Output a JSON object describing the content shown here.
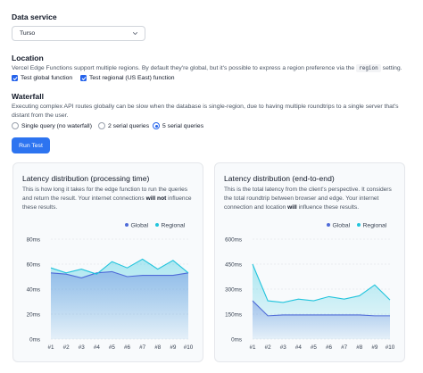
{
  "data_service": {
    "title": "Data service",
    "selected": "Turso"
  },
  "location": {
    "title": "Location",
    "desc_before": "Vercel Edge Functions support multiple regions. By default they're global, but it's possible to express a region preference via the",
    "code": "region",
    "desc_after": "setting.",
    "checkboxes": [
      {
        "label": "Test global function",
        "checked": true
      },
      {
        "label": "Test regional (US East) function",
        "checked": true
      }
    ]
  },
  "waterfall": {
    "title": "Waterfall",
    "desc": "Executing complex API routes globally can be slow when the database is single-region, due to having multiple roundtrips to a single server that's distant from the user.",
    "options": [
      {
        "label": "Single query (no waterfall)",
        "selected": false
      },
      {
        "label": "2 serial queries",
        "selected": false
      },
      {
        "label": "5 serial queries",
        "selected": true
      }
    ]
  },
  "run_button": "Run Test",
  "colors": {
    "accent": "#2d74f0",
    "global": "#4f6bd8",
    "regional": "#22c4dc",
    "grid": "#e5e7eb"
  },
  "cards": [
    {
      "title": "Latency distribution (processing time)",
      "desc_1": "This is how long it takes for the edge function to run the queries and return the result. Your internet connections",
      "desc_bold_1": "will not",
      "desc_2": "influence these results.",
      "desc_bold_2": "",
      "desc_3": ""
    },
    {
      "title": "Latency distribution (end-to-end)",
      "desc_1": "This is the total latency from the client's perspective. It considers the total roundtrip between browser and edge. Your internet connection and location",
      "desc_bold_1": "will",
      "desc_2": "influence these results.",
      "desc_bold_2": "",
      "desc_3": ""
    }
  ],
  "chart_data": [
    {
      "type": "area",
      "categories": [
        "#1",
        "#2",
        "#3",
        "#4",
        "#5",
        "#6",
        "#7",
        "#8",
        "#9",
        "#10"
      ],
      "series": [
        {
          "name": "Global",
          "values": [
            53,
            52,
            49,
            53,
            54,
            50,
            51,
            51,
            51,
            53
          ]
        },
        {
          "name": "Regional",
          "values": [
            57,
            53,
            56,
            52,
            62,
            57,
            64,
            56,
            63,
            53
          ]
        }
      ],
      "y_ticks": [
        "0ms",
        "20ms",
        "40ms",
        "60ms",
        "80ms"
      ],
      "ylim": [
        0,
        80
      ],
      "legend": "top-right",
      "grid": true
    },
    {
      "type": "area",
      "categories": [
        "#1",
        "#2",
        "#3",
        "#4",
        "#5",
        "#6",
        "#7",
        "#8",
        "#9",
        "#10"
      ],
      "series": [
        {
          "name": "Global",
          "values": [
            230,
            140,
            145,
            145,
            145,
            145,
            145,
            145,
            140,
            140
          ]
        },
        {
          "name": "Regional",
          "values": [
            450,
            230,
            220,
            240,
            230,
            255,
            240,
            260,
            325,
            235
          ]
        }
      ],
      "y_ticks": [
        "0ms",
        "150ms",
        "300ms",
        "450ms",
        "600ms"
      ],
      "ylim": [
        0,
        600
      ],
      "legend": "top-right",
      "grid": true
    }
  ]
}
